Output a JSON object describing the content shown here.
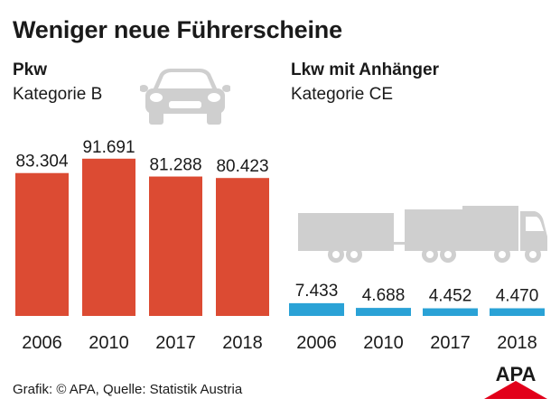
{
  "title": "Weniger neue Führerscheine",
  "source": "Grafik: © APA, Quelle: Statistik Austria",
  "logo_text": "APA",
  "colors": {
    "pkw_bar": "#dc4b33",
    "lkw_bar": "#2aa2d6",
    "icon_gray": "#cfcfcf",
    "logo_red": "#e2001a",
    "text": "#1a1a1a"
  },
  "icons": [
    "car-icon",
    "truck-trailer-icon"
  ],
  "chart_data": [
    {
      "type": "bar",
      "title": "Pkw",
      "subtitle": "Kategorie B",
      "categories": [
        "2006",
        "2010",
        "2017",
        "2018"
      ],
      "values": [
        83304,
        91691,
        81288,
        80423
      ],
      "value_labels": [
        "83.304",
        "91.691",
        "81.288",
        "80.423"
      ],
      "ylim": [
        0,
        100000
      ],
      "grid": false
    },
    {
      "type": "bar",
      "title": "Lkw mit Anhänger",
      "subtitle": "Kategorie CE",
      "categories": [
        "2006",
        "2010",
        "2017",
        "2018"
      ],
      "values": [
        7433,
        4688,
        4452,
        4470
      ],
      "value_labels": [
        "7.433",
        "4.688",
        "4.452",
        "4.470"
      ],
      "ylim": [
        0,
        100000
      ],
      "grid": false
    }
  ]
}
